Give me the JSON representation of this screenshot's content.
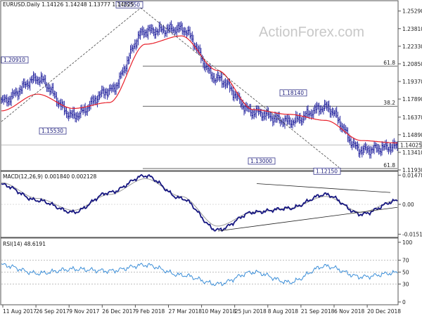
{
  "main_panel": {
    "header": "EURUSD.Daily  1.14126 1.14248 1.13777 1.14025",
    "watermark": "ActionForex.com",
    "y_ticks": [
      "1.25290",
      "1.23810",
      "1.22330",
      "1.20850",
      "1.19370",
      "1.17890",
      "1.16370",
      "1.14890",
      "1.13410",
      "1.11930"
    ],
    "last_price": "1.14025",
    "fib_levels": [
      {
        "label": "61.8",
        "value": 1.2066
      },
      {
        "label": "38.2",
        "value": 1.1729
      },
      {
        "label": "61.8",
        "value": 1.1205
      }
    ],
    "annotations": [
      {
        "label": "1.25550",
        "value": 1.2555
      },
      {
        "label": "1.20910",
        "value": 1.2091
      },
      {
        "label": "1.15530",
        "value": 1.1553
      },
      {
        "label": "1.18140",
        "value": 1.1814
      },
      {
        "label": "1.13000",
        "value": 1.13
      },
      {
        "label": "1.12150",
        "value": 1.1215
      }
    ]
  },
  "macd_panel": {
    "header": "MACD(12,26,9) 0.001840 0.002128",
    "y_ticks": [
      "0.014786",
      "0.00",
      "-0.015107"
    ]
  },
  "rsi_panel": {
    "header": "RSI(14) 48.6191",
    "y_ticks": [
      "100",
      "70",
      "50",
      "30",
      "0"
    ]
  },
  "x_ticks": [
    "11 Aug 2017",
    "26 Sep 2017",
    "9 Nov 2017",
    "26 Dec 2017",
    "9 Feb 2018",
    "27 Mar 2018",
    "10 May 2018",
    "25 Jun 2018",
    "8 Aug 2018",
    "21 Sep 2018",
    "6 Nov 2018",
    "20 Dec 2018"
  ],
  "colors": {
    "candle_up": "#1a1a9a",
    "candle_down": "#1a1a9a",
    "ma": "#e8202a",
    "macd": "#151580",
    "signal": "#999999",
    "rsi": "#3b8ed8",
    "trendline": "#222222",
    "grid": "#cfcfcf",
    "annotation_border": "#1a1a7a"
  },
  "chart_data": [
    {
      "type": "line",
      "title": "EURUSD.Daily",
      "subtitle": "1.14126 1.14248 1.13777 1.14025",
      "ylim": [
        1.1193,
        1.261
      ],
      "x": [
        "11 Aug 2017",
        "26 Sep 2017",
        "9 Nov 2017",
        "26 Dec 2017",
        "9 Feb 2018",
        "27 Mar 2018",
        "10 May 2018",
        "25 Jun 2018",
        "8 Aug 2018",
        "21 Sep 2018",
        "6 Nov 2018",
        "20 Dec 2018"
      ],
      "series": [
        {
          "values": [
            1.177,
            1.196,
            1.165,
            1.186,
            1.236,
            1.238,
            1.196,
            1.168,
            1.16,
            1.172,
            1.136,
            1.139
          ]
        },
        {
          "values": [
            1.169,
            1.183,
            1.171,
            1.176,
            1.225,
            1.232,
            1.203,
            1.17,
            1.166,
            1.161,
            1.144,
            1.142
          ]
        }
      ]
    },
    {
      "type": "line",
      "title": "MACD(12,26,9)",
      "subtitle": "0.001840 0.002128",
      "ylim": [
        -0.016,
        0.016
      ],
      "x": [
        "11 Aug 2017",
        "26 Sep 2017",
        "9 Nov 2017",
        "26 Dec 2017",
        "9 Feb 2018",
        "27 Mar 2018",
        "10 May 2018",
        "25 Jun 2018",
        "8 Aug 2018",
        "21 Sep 2018",
        "6 Nov 2018",
        "20 Dec 2018"
      ],
      "series": [
        {
          "values": [
            0.01,
            0.002,
            -0.004,
            0.006,
            0.0145,
            0.003,
            -0.013,
            -0.004,
            -0.002,
            0.005,
            -0.005,
            0.0018
          ]
        },
        {
          "values": [
            0.011,
            0.003,
            -0.003,
            0.005,
            0.013,
            0.004,
            -0.011,
            -0.004,
            -0.002,
            0.004,
            -0.004,
            0.0021
          ]
        }
      ]
    },
    {
      "type": "line",
      "title": "RSI(14)",
      "subtitle": "48.6191",
      "ylim": [
        0,
        100
      ],
      "x": [
        "11 Aug 2017",
        "26 Sep 2017",
        "9 Nov 2017",
        "26 Dec 2017",
        "9 Feb 2018",
        "27 Mar 2018",
        "10 May 2018",
        "25 Jun 2018",
        "8 Aug 2018",
        "21 Sep 2018",
        "6 Nov 2018",
        "20 Dec 2018"
      ],
      "series": [
        {
          "values": [
            62,
            48,
            55,
            52,
            62,
            45,
            30,
            50,
            33,
            60,
            42,
            49
          ]
        }
      ]
    }
  ]
}
